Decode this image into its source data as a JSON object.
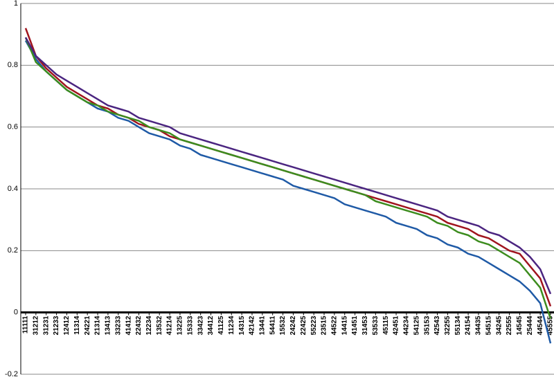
{
  "chart_data": {
    "type": "line",
    "categories": [
      "11111",
      "31212",
      "31231",
      "21233",
      "12412",
      "11314",
      "24221",
      "21314",
      "13413",
      "33233",
      "41412",
      "22432",
      "12234",
      "13532",
      "41214",
      "13225",
      "15333",
      "33423",
      "34412",
      "41125",
      "11234",
      "14315",
      "42142",
      "13441",
      "54411",
      "15532",
      "24242",
      "22425",
      "55223",
      "23515",
      "44522",
      "14415",
      "41451",
      "31453",
      "53533",
      "45115",
      "42451",
      "44234",
      "54125",
      "35153",
      "42543",
      "32255",
      "55134",
      "24154",
      "34435",
      "54515",
      "34245",
      "22555",
      "14545",
      "25444",
      "44544",
      "45555"
    ],
    "series": [
      {
        "color": "#1f5aa6",
        "values": [
          0.88,
          0.82,
          0.78,
          0.75,
          0.72,
          0.7,
          0.68,
          0.66,
          0.65,
          0.63,
          0.62,
          0.6,
          0.58,
          0.57,
          0.56,
          0.54,
          0.53,
          0.51,
          0.5,
          0.49,
          0.48,
          0.47,
          0.46,
          0.45,
          0.44,
          0.43,
          0.41,
          0.4,
          0.39,
          0.38,
          0.37,
          0.35,
          0.34,
          0.33,
          0.32,
          0.31,
          0.29,
          0.28,
          0.27,
          0.25,
          0.24,
          0.22,
          0.21,
          0.19,
          0.18,
          0.16,
          0.14,
          0.12,
          0.1,
          0.07,
          0.03,
          -0.1
        ]
      },
      {
        "color": "#a0141e",
        "values": [
          0.92,
          0.83,
          0.79,
          0.76,
          0.73,
          0.71,
          0.69,
          0.67,
          0.66,
          0.64,
          0.63,
          0.61,
          0.6,
          0.59,
          0.57,
          0.56,
          0.55,
          0.54,
          0.53,
          0.52,
          0.51,
          0.5,
          0.49,
          0.48,
          0.47,
          0.46,
          0.45,
          0.44,
          0.43,
          0.42,
          0.41,
          0.4,
          0.39,
          0.38,
          0.37,
          0.36,
          0.35,
          0.34,
          0.33,
          0.32,
          0.31,
          0.29,
          0.28,
          0.27,
          0.25,
          0.24,
          0.22,
          0.2,
          0.19,
          0.15,
          0.11,
          0.02
        ]
      },
      {
        "color": "#3c8c1e",
        "values": [
          0.89,
          0.81,
          0.78,
          0.75,
          0.72,
          0.7,
          0.68,
          0.67,
          0.65,
          0.64,
          0.63,
          0.62,
          0.6,
          0.59,
          0.58,
          0.56,
          0.55,
          0.54,
          0.53,
          0.52,
          0.51,
          0.5,
          0.49,
          0.48,
          0.47,
          0.46,
          0.45,
          0.44,
          0.43,
          0.42,
          0.41,
          0.4,
          0.39,
          0.38,
          0.36,
          0.35,
          0.34,
          0.33,
          0.32,
          0.31,
          0.29,
          0.28,
          0.26,
          0.25,
          0.23,
          0.22,
          0.2,
          0.18,
          0.16,
          0.12,
          0.08,
          -0.02
        ]
      },
      {
        "color": "#4b2580",
        "values": [
          0.89,
          0.83,
          0.8,
          0.77,
          0.75,
          0.73,
          0.71,
          0.69,
          0.67,
          0.66,
          0.65,
          0.63,
          0.62,
          0.61,
          0.6,
          0.58,
          0.57,
          0.56,
          0.55,
          0.54,
          0.53,
          0.52,
          0.51,
          0.5,
          0.49,
          0.48,
          0.47,
          0.46,
          0.45,
          0.44,
          0.43,
          0.42,
          0.41,
          0.4,
          0.39,
          0.38,
          0.37,
          0.36,
          0.35,
          0.34,
          0.33,
          0.31,
          0.3,
          0.29,
          0.28,
          0.26,
          0.25,
          0.23,
          0.21,
          0.18,
          0.14,
          0.06
        ]
      }
    ],
    "ylim": [
      -0.2,
      1
    ],
    "yticks": [
      -0.2,
      0,
      0.2,
      0.4,
      0.6,
      0.8,
      1
    ],
    "grid": true
  }
}
